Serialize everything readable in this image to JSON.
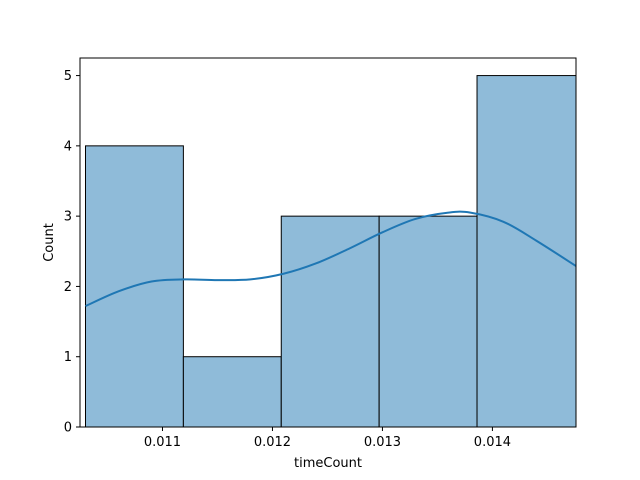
{
  "chart_data": {
    "type": "bar",
    "title": "",
    "xlabel": "timeCount",
    "ylabel": "Count",
    "xlim": [
      0.01025,
      0.01476
    ],
    "ylim": [
      0,
      5.25
    ],
    "grid": false,
    "colors": {
      "bar_fill": "#8fbbd9",
      "bar_edge": "#000000",
      "kde": "#1f77b4"
    },
    "x_ticks": [
      {
        "value": 0.011,
        "label": "0.011"
      },
      {
        "value": 0.012,
        "label": "0.012"
      },
      {
        "value": 0.013,
        "label": "0.013"
      },
      {
        "value": 0.014,
        "label": "0.014"
      }
    ],
    "y_ticks": [
      {
        "value": 0,
        "label": "0"
      },
      {
        "value": 1,
        "label": "1"
      },
      {
        "value": 2,
        "label": "2"
      },
      {
        "value": 3,
        "label": "3"
      },
      {
        "value": 4,
        "label": "4"
      },
      {
        "value": 5,
        "label": "5"
      }
    ],
    "bins": [
      {
        "start": 0.0103,
        "end": 0.01119,
        "count": 4
      },
      {
        "start": 0.01119,
        "end": 0.01208,
        "count": 1
      },
      {
        "start": 0.01208,
        "end": 0.01297,
        "count": 3
      },
      {
        "start": 0.01297,
        "end": 0.01386,
        "count": 3
      },
      {
        "start": 0.01386,
        "end": 0.01476,
        "count": 5
      }
    ],
    "kde": {
      "x": [
        0.0103,
        0.0106,
        0.0109,
        0.0112,
        0.0115,
        0.0118,
        0.0121,
        0.0124,
        0.0127,
        0.013,
        0.0133,
        0.0136,
        0.0138,
        0.0141,
        0.0144,
        0.01476
      ],
      "y": [
        1.72,
        1.93,
        2.07,
        2.1,
        2.09,
        2.1,
        2.18,
        2.33,
        2.54,
        2.77,
        2.96,
        3.05,
        3.05,
        2.92,
        2.65,
        2.29
      ]
    }
  }
}
